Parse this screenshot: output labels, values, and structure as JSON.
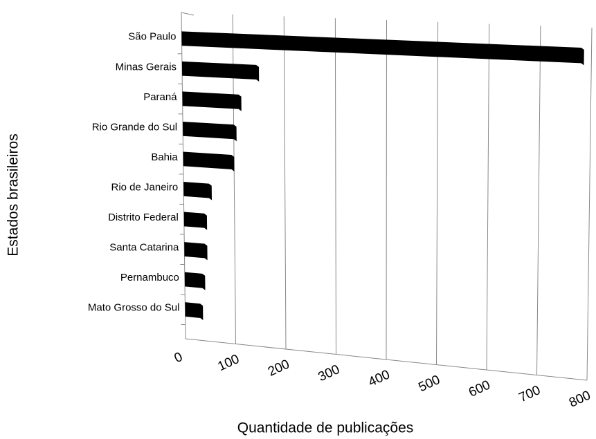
{
  "chart_data": {
    "type": "bar",
    "categories": [
      "São Paulo",
      "Minas Gerais",
      "Paraná",
      "Rio Grande do Sul",
      "Bahia",
      "Rio de Janeiro",
      "Distrito Federal",
      "Santa Catarina",
      "Pernambuco",
      "Mato Grosso do Sul"
    ],
    "values": [
      780,
      145,
      110,
      100,
      95,
      50,
      40,
      40,
      35,
      30
    ],
    "color": "#000000",
    "xlim": [
      0,
      800
    ],
    "xticks": [
      0,
      100,
      200,
      300,
      400,
      500,
      600,
      700,
      800
    ],
    "x_label": "Quantidade de publicações",
    "y_label": "Estados brasileiros",
    "grid": true
  }
}
